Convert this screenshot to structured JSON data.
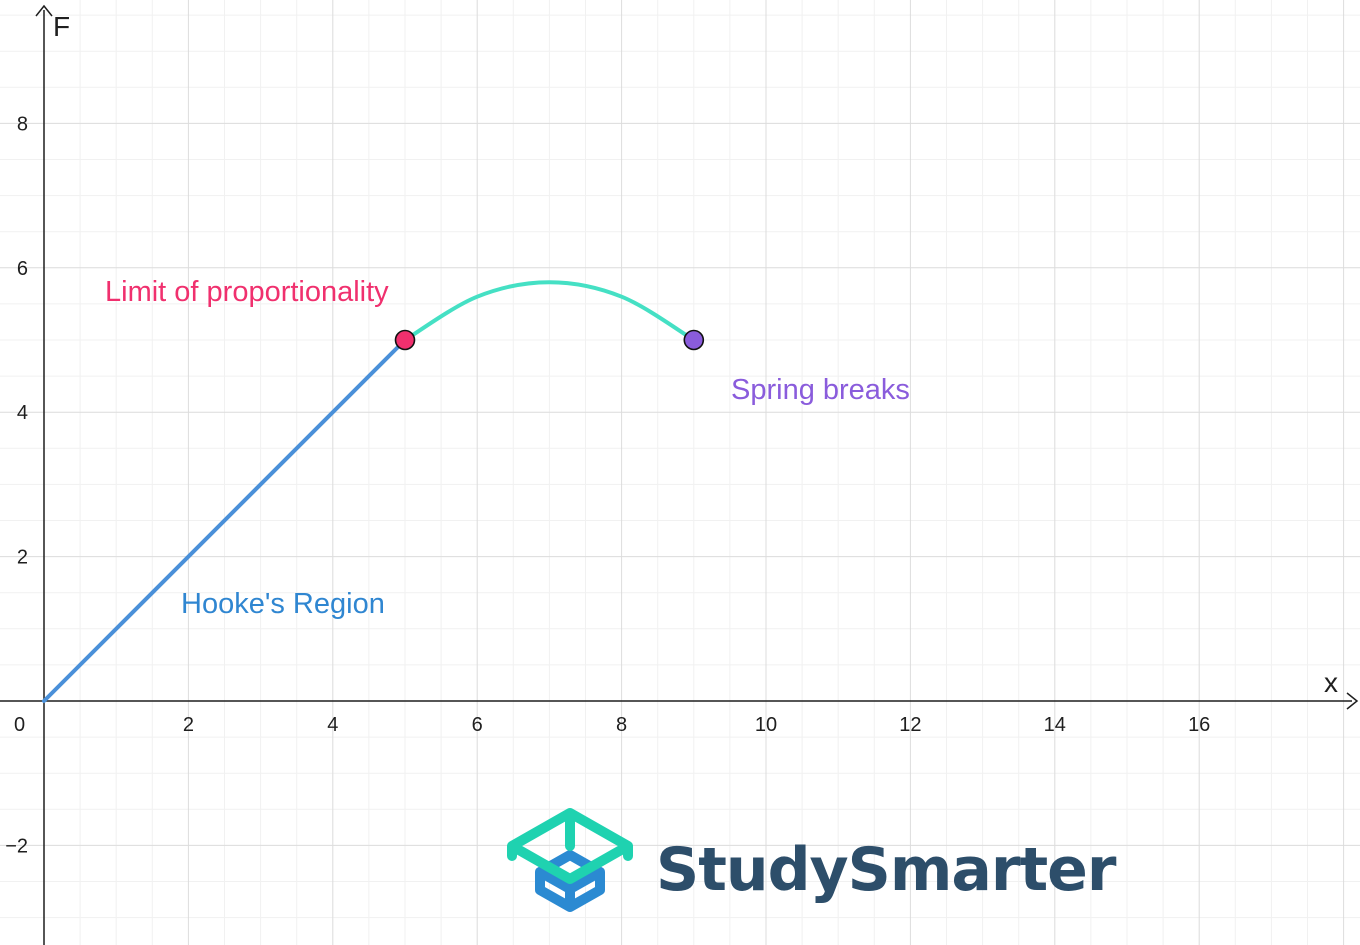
{
  "chart_data": {
    "type": "line",
    "title": "",
    "xlabel": "x",
    "ylabel": "F",
    "xlim": [
      0,
      18
    ],
    "ylim": [
      -3.3,
      9.5
    ],
    "x_ticks": [
      2,
      4,
      6,
      8,
      10,
      12,
      14,
      16
    ],
    "y_ticks": [
      -2,
      2,
      4,
      6,
      8
    ],
    "origin_label": "0",
    "grid": true,
    "series": [
      {
        "key": "hooke",
        "color": "#4a90d9",
        "points": [
          [
            0,
            0
          ],
          [
            5,
            5
          ]
        ]
      },
      {
        "key": "plastic",
        "color": "#45e0c4",
        "points": [
          [
            5,
            5
          ],
          [
            6,
            5.6
          ],
          [
            7,
            5.8
          ],
          [
            8,
            5.6
          ],
          [
            9,
            5
          ]
        ]
      }
    ],
    "markers": [
      {
        "x": 5,
        "y": 5,
        "color": "#f0306e"
      },
      {
        "x": 9,
        "y": 5,
        "color": "#8a5cdc"
      }
    ],
    "annotations": [
      {
        "text": "Limit of proportionality",
        "color": "#f0306e"
      },
      {
        "text": "Spring breaks",
        "color": "#8a5cdc"
      },
      {
        "text": "Hooke's Region",
        "color": "#2f86d1"
      }
    ]
  },
  "brand": {
    "name": "StudySmarter",
    "text_color": "#2d4e6a",
    "logo_top_color": "#1fd2b0",
    "logo_bottom_color": "#2b8ad2"
  }
}
